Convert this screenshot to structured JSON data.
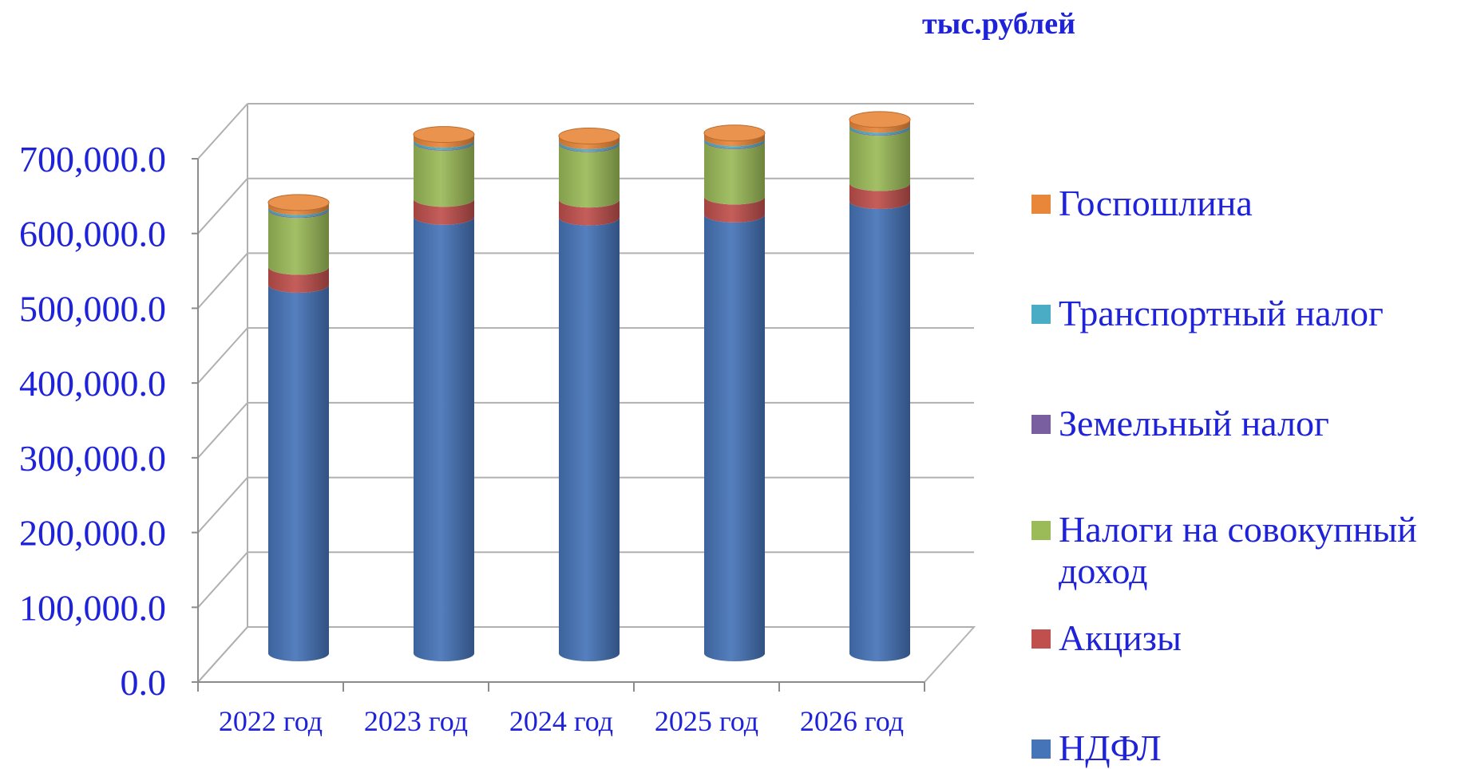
{
  "chart_data": {
    "type": "bar",
    "stacked": true,
    "three_d": true,
    "unit_label": "тыс.рублей",
    "categories": [
      "2022 год",
      "2023 год",
      "2024 год",
      "2025 год",
      "2026 год"
    ],
    "ylim": [
      0,
      700000
    ],
    "yticks": [
      0,
      100000,
      200000,
      300000,
      400000,
      500000,
      600000,
      700000
    ],
    "ytick_labels": [
      "0.0",
      "100,000.0",
      "200,000.0",
      "300,000.0",
      "400,000.0",
      "500,000.0",
      "600,000.0",
      "700,000.0"
    ],
    "grid": true,
    "legend_position": "right",
    "series": [
      {
        "name": "НДФЛ",
        "color": "#4674b8",
        "values": [
          493000,
          584000,
          583000,
          587000,
          605000
        ]
      },
      {
        "name": "Акцизы",
        "color": "#c0504d",
        "values": [
          24000,
          24000,
          24000,
          24000,
          24000
        ]
      },
      {
        "name": "Налоги на совокупный доход",
        "color": "#9bbb59",
        "values": [
          76000,
          75000,
          74000,
          74000,
          74000
        ]
      },
      {
        "name": "Земельный налог",
        "color": "#7a5fa0",
        "values": [
          1000,
          1000,
          1000,
          1000,
          1000
        ]
      },
      {
        "name": "Транспортный налог",
        "color": "#4bacc6",
        "values": [
          3000,
          3000,
          3000,
          3000,
          3000
        ]
      },
      {
        "name": "Госпошлина",
        "color": "#e8873a",
        "values": [
          6000,
          7000,
          7000,
          7000,
          7000
        ]
      }
    ],
    "legend_order": [
      "Госпошлина",
      "Транспортный налог",
      "Земельный налог",
      "Налоги на совокупный доход",
      "Акцизы",
      "НДФЛ"
    ]
  }
}
